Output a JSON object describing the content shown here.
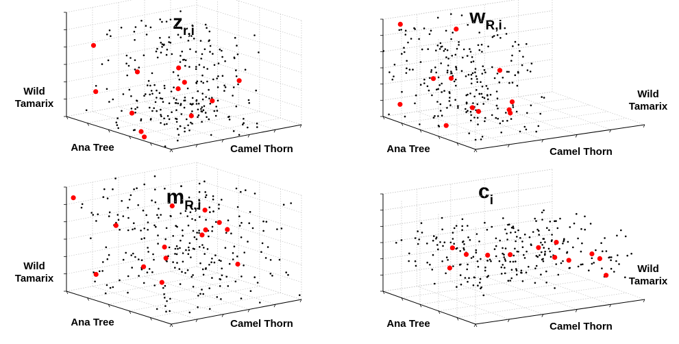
{
  "chart_data": [
    {
      "type": "scatter",
      "title": {
        "main": "z",
        "sub": "r,i"
      },
      "axes": {
        "left": "Ana Tree",
        "right": "Camel Thorn",
        "vertical": [
          "Wild",
          "Tamarix"
        ]
      },
      "view": "A",
      "grid": true,
      "series": [
        {
          "color": "#000000",
          "count": 260,
          "seed": 11,
          "dist": "cone"
        },
        {
          "color": "#ff0000",
          "count": 12,
          "seed": 7,
          "dist": "cone"
        }
      ]
    },
    {
      "type": "scatter",
      "title": {
        "main": "w",
        "sub": "R,i"
      },
      "axes": {
        "left": "Ana Tree",
        "right": "Camel Thorn",
        "vertical": [
          "Wild",
          "Tamarix"
        ]
      },
      "view": "B",
      "grid": true,
      "series": [
        {
          "color": "#000000",
          "count": 240,
          "seed": 23,
          "dist": "slab"
        },
        {
          "color": "#ff0000",
          "count": 12,
          "seed": 5,
          "dist": "slab"
        }
      ]
    },
    {
      "type": "scatter",
      "title": {
        "main": "m",
        "sub": "R,i"
      },
      "axes": {
        "left": "Ana Tree",
        "right": "Camel Thorn",
        "vertical": [
          "Wild",
          "Tamarix"
        ]
      },
      "view": "A",
      "grid": true,
      "series": [
        {
          "color": "#000000",
          "count": 270,
          "seed": 31,
          "dist": "uniform"
        },
        {
          "color": "#ff0000",
          "count": 14,
          "seed": 13,
          "dist": "uniform"
        }
      ]
    },
    {
      "type": "scatter",
      "title": {
        "main": "c",
        "sub": "i"
      },
      "axes": {
        "left": "Ana Tree",
        "right": "Camel Thorn",
        "vertical": [
          "Wild",
          "Tamarix"
        ]
      },
      "view": "B",
      "grid": true,
      "series": [
        {
          "color": "#000000",
          "count": 260,
          "seed": 41,
          "dist": "band"
        },
        {
          "color": "#ff0000",
          "count": 12,
          "seed": 17,
          "dist": "band"
        }
      ]
    }
  ]
}
